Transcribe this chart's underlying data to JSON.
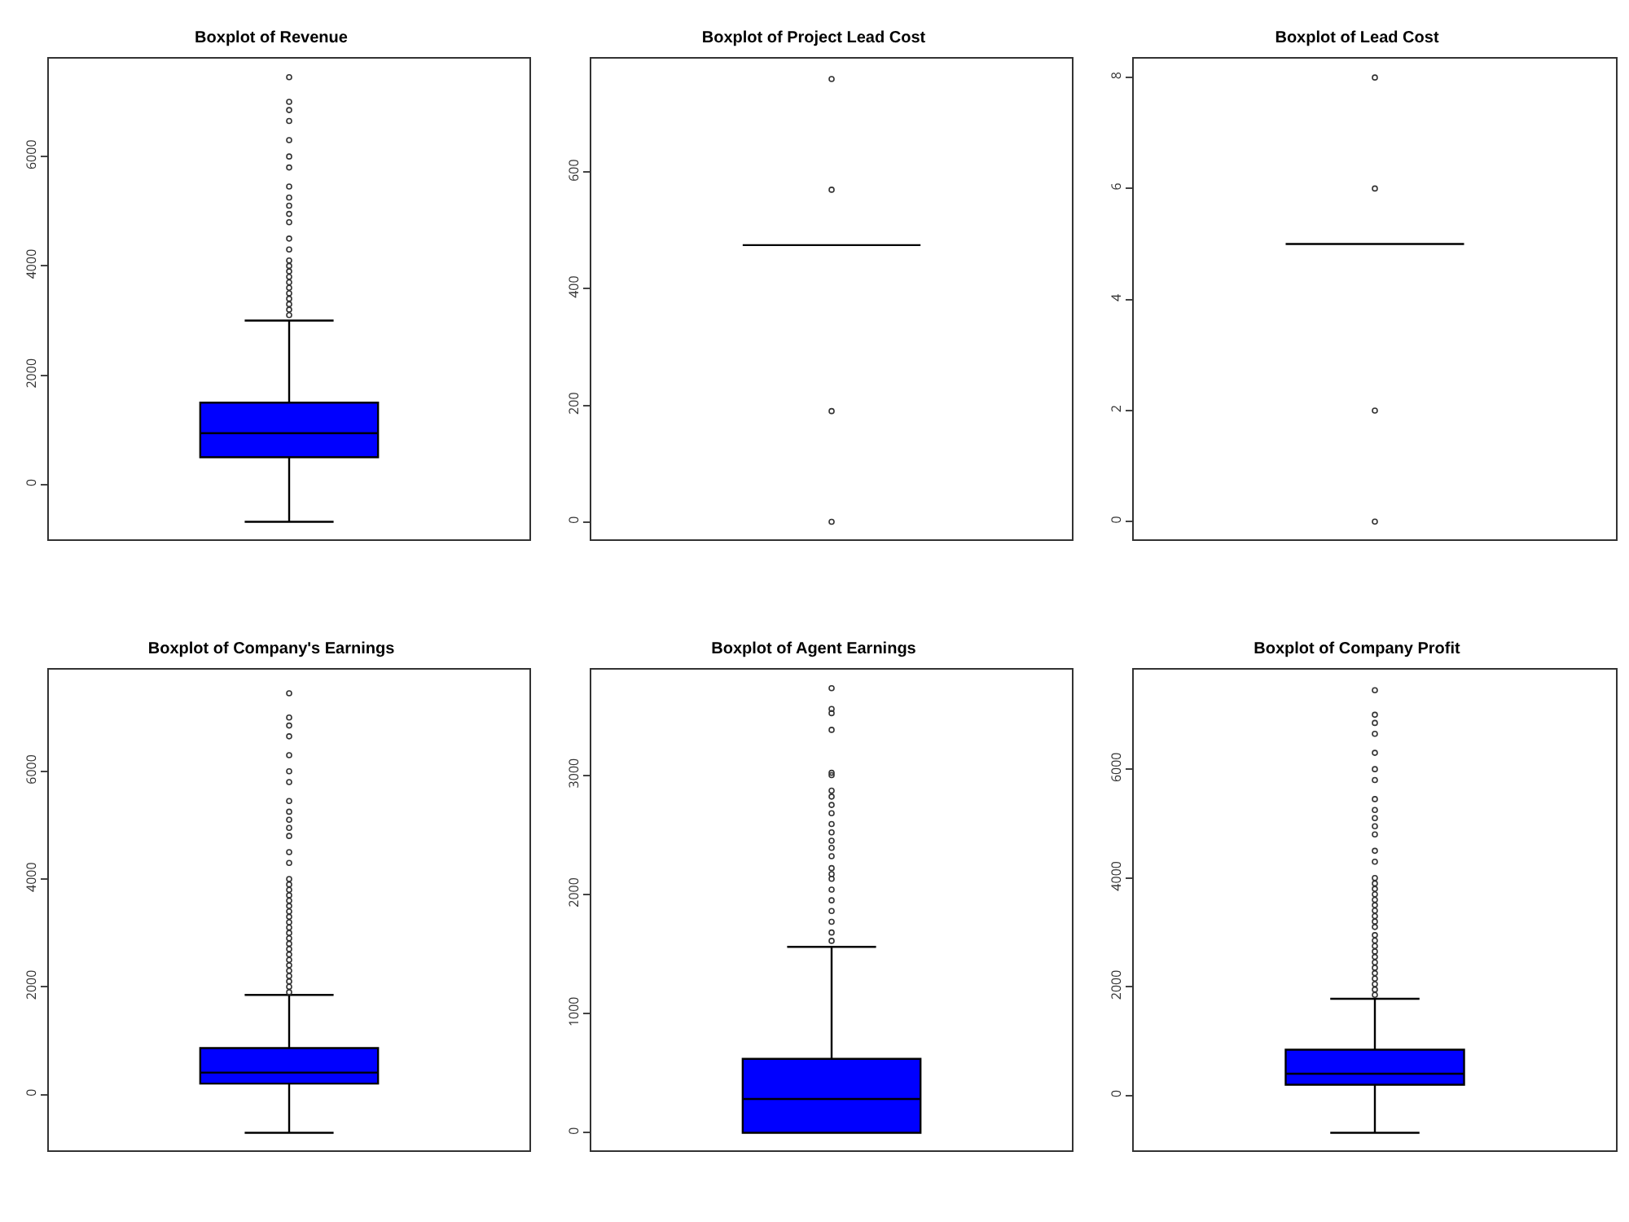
{
  "chart_data": [
    {
      "type": "box",
      "title": "Boxplot of Revenue",
      "categories": [
        null
      ],
      "color": "#0000ff",
      "ylim": [
        -1000,
        7790
      ],
      "yticks": [
        0,
        2000,
        4000,
        6000
      ],
      "tick_labels": "y",
      "grid": false,
      "boxes": [
        {
          "low": -680,
          "q1": 500,
          "median": 940,
          "q3": 1500,
          "high": 3000,
          "outliers": [
            3100,
            3200,
            3300,
            3400,
            3500,
            3600,
            3700,
            3800,
            3900,
            4000,
            4100,
            4300,
            4500,
            4800,
            4950,
            5100,
            5250,
            5450,
            5800,
            6000,
            6300,
            6650,
            6850,
            7000,
            7450
          ]
        }
      ]
    },
    {
      "type": "box",
      "title": "Boxplot of Project Lead Cost",
      "categories": [
        null
      ],
      "color": "#000000",
      "ylim": [
        -30,
        795
      ],
      "yticks": [
        0,
        200,
        400,
        600
      ],
      "tick_labels": "y",
      "grid": false,
      "boxes": [
        {
          "low": 475,
          "q1": 475,
          "median": 475,
          "q3": 475,
          "high": 475,
          "outliers": [
            0,
            190,
            570,
            760
          ]
        }
      ]
    },
    {
      "type": "box",
      "title": "Boxplot of Lead Cost",
      "categories": [
        null
      ],
      "color": "#000000",
      "ylim": [
        -0.32,
        8.34
      ],
      "yticks": [
        0,
        2,
        4,
        6,
        8
      ],
      "tick_labels": "y",
      "grid": false,
      "boxes": [
        {
          "low": 5,
          "q1": 5,
          "median": 5,
          "q3": 5,
          "high": 5,
          "outliers": [
            0,
            2,
            6,
            8
          ]
        }
      ]
    },
    {
      "type": "box",
      "title": "Boxplot of Company's Earnings",
      "categories": [
        null
      ],
      "color": "#0000ff",
      "ylim": [
        -1036,
        7888
      ],
      "yticks": [
        0,
        2000,
        4000,
        6000
      ],
      "tick_labels": "y",
      "grid": false,
      "boxes": [
        {
          "low": -711,
          "q1": 203,
          "median": 406,
          "q3": 863,
          "high": 1848,
          "outliers": [
            1900,
            2000,
            2100,
            2200,
            2300,
            2400,
            2500,
            2600,
            2700,
            2800,
            2900,
            3000,
            3100,
            3200,
            3300,
            3400,
            3500,
            3600,
            3700,
            3800,
            3900,
            4000,
            4300,
            4500,
            4800,
            4950,
            5100,
            5250,
            5450,
            5800,
            6000,
            6300,
            6650,
            6850,
            7000,
            7450
          ]
        }
      ]
    },
    {
      "type": "box",
      "title": "Boxplot of Agent Earnings",
      "categories": [
        null
      ],
      "color": "#0000ff",
      "ylim": [
        -147,
        3885
      ],
      "yticks": [
        0,
        1000,
        2000,
        3000
      ],
      "tick_labels": "y",
      "grid": false,
      "boxes": [
        {
          "low": 0,
          "q1": 0,
          "median": 284,
          "q3": 620,
          "high": 1560,
          "outliers": [
            1610,
            1680,
            1770,
            1860,
            1950,
            2040,
            2130,
            2170,
            2220,
            2320,
            2390,
            2450,
            2520,
            2590,
            2680,
            2750,
            2820,
            2870,
            3000,
            3020,
            3380,
            3520,
            3555,
            3730
          ]
        }
      ]
    },
    {
      "type": "box",
      "title": "Boxplot of Company Profit",
      "categories": [
        null
      ],
      "color": "#0000ff",
      "ylim": [
        -1005,
        7829
      ],
      "yticks": [
        0,
        2000,
        4000,
        6000
      ],
      "tick_labels": "y",
      "grid": false,
      "boxes": [
        {
          "low": -683,
          "q1": 201,
          "median": 402,
          "q3": 844,
          "high": 1779,
          "outliers": [
            1850,
            1950,
            2050,
            2150,
            2250,
            2350,
            2450,
            2550,
            2650,
            2750,
            2850,
            2950,
            3100,
            3200,
            3300,
            3400,
            3500,
            3600,
            3700,
            3800,
            3900,
            4000,
            4300,
            4500,
            4800,
            4950,
            5100,
            5250,
            5450,
            5800,
            6000,
            6300,
            6650,
            6850,
            7000,
            7450
          ]
        }
      ]
    }
  ]
}
